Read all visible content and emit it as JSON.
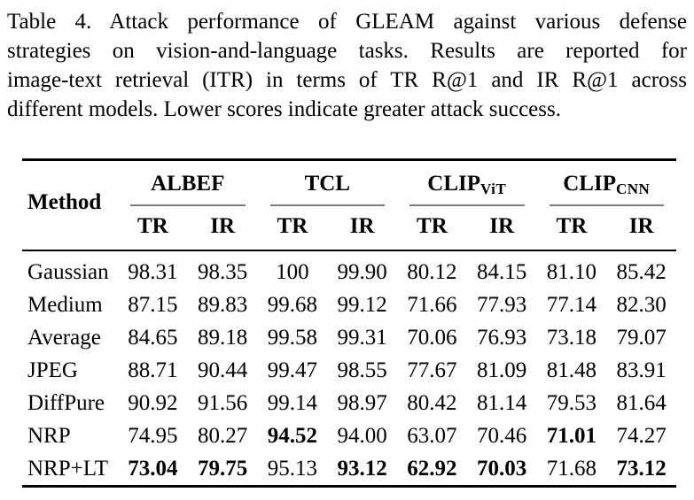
{
  "caption": {
    "lines": [
      "Table 4. Attack performance of GLEAM against various defense",
      "strategies on vision-and-language tasks. Results are reported for",
      "image-text retrieval (ITR) in terms of TR R@1 and IR R@1 across",
      "different models. Lower scores indicate greater attack success."
    ]
  },
  "table": {
    "method_header": "Method",
    "groups": [
      {
        "name": "ALBEF",
        "sub": ""
      },
      {
        "name": "TCL",
        "sub": ""
      },
      {
        "name": "CLIP",
        "sub": "ViT"
      },
      {
        "name": "CLIP",
        "sub": "CNN"
      }
    ],
    "subheaders": [
      "TR",
      "IR",
      "TR",
      "IR",
      "TR",
      "IR",
      "TR",
      "IR"
    ],
    "rows": [
      {
        "method": "Gaussian",
        "values": [
          "98.31",
          "98.35",
          "100",
          "99.90",
          "80.12",
          "84.15",
          "81.10",
          "85.42"
        ],
        "bold": [
          false,
          false,
          false,
          false,
          false,
          false,
          false,
          false
        ]
      },
      {
        "method": "Medium",
        "values": [
          "87.15",
          "89.83",
          "99.68",
          "99.12",
          "71.66",
          "77.93",
          "77.14",
          "82.30"
        ],
        "bold": [
          false,
          false,
          false,
          false,
          false,
          false,
          false,
          false
        ]
      },
      {
        "method": "Average",
        "values": [
          "84.65",
          "89.18",
          "99.58",
          "99.31",
          "70.06",
          "76.93",
          "73.18",
          "79.07"
        ],
        "bold": [
          false,
          false,
          false,
          false,
          false,
          false,
          false,
          false
        ]
      },
      {
        "method": "JPEG",
        "values": [
          "88.71",
          "90.44",
          "99.47",
          "98.55",
          "77.67",
          "81.09",
          "81.48",
          "83.91"
        ],
        "bold": [
          false,
          false,
          false,
          false,
          false,
          false,
          false,
          false
        ]
      },
      {
        "method": "DiffPure",
        "values": [
          "90.92",
          "91.56",
          "99.14",
          "98.97",
          "80.42",
          "81.14",
          "79.53",
          "81.64"
        ],
        "bold": [
          false,
          false,
          false,
          false,
          false,
          false,
          false,
          false
        ]
      },
      {
        "method": "NRP",
        "values": [
          "74.95",
          "80.27",
          "94.52",
          "94.00",
          "63.07",
          "70.46",
          "71.01",
          "74.27"
        ],
        "bold": [
          false,
          false,
          true,
          false,
          false,
          false,
          true,
          false
        ]
      },
      {
        "method": "NRP+LT",
        "values": [
          "73.04",
          "79.75",
          "95.13",
          "93.12",
          "62.92",
          "70.03",
          "71.68",
          "73.12"
        ],
        "bold": [
          true,
          true,
          false,
          true,
          true,
          true,
          false,
          true
        ]
      }
    ]
  },
  "colors": {
    "text": "#000000",
    "background": "#ffffff",
    "heavy_rule": "#000000",
    "cmidrule": "#7e7e7e"
  }
}
